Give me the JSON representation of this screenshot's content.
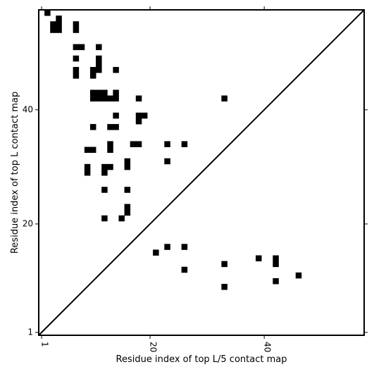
{
  "chart_data": {
    "type": "heatmap",
    "subtype": "contact-map",
    "xlabel": "Residue index of top L/5 contact map",
    "ylabel": "Residue index of top L contact map",
    "xlim": [
      0.5,
      57.5
    ],
    "ylim": [
      0.5,
      57.5
    ],
    "x_ticks": [
      {
        "value": 1,
        "label": "1"
      },
      {
        "value": 20,
        "label": "20"
      },
      {
        "value": 40,
        "label": "40"
      }
    ],
    "y_ticks": [
      {
        "value": 1,
        "label": "1"
      },
      {
        "value": 20,
        "label": "20"
      },
      {
        "value": 40,
        "label": "40"
      }
    ],
    "diagonal": true,
    "upper_left_contacts": [
      [
        2,
        57
      ],
      [
        3,
        54
      ],
      [
        3,
        55
      ],
      [
        4,
        54
      ],
      [
        4,
        55
      ],
      [
        4,
        56
      ],
      [
        7,
        54
      ],
      [
        7,
        55
      ],
      [
        7,
        51
      ],
      [
        8,
        51
      ],
      [
        11,
        51
      ],
      [
        7,
        49
      ],
      [
        11,
        48
      ],
      [
        11,
        49
      ],
      [
        7,
        46
      ],
      [
        7,
        47
      ],
      [
        10,
        46
      ],
      [
        10,
        47
      ],
      [
        11,
        47
      ],
      [
        14,
        47
      ],
      [
        10,
        42
      ],
      [
        10,
        43
      ],
      [
        11,
        42
      ],
      [
        11,
        43
      ],
      [
        12,
        42
      ],
      [
        12,
        43
      ],
      [
        13,
        42
      ],
      [
        14,
        42
      ],
      [
        14,
        43
      ],
      [
        18,
        42
      ],
      [
        33,
        42
      ],
      [
        14,
        39
      ],
      [
        18,
        38
      ],
      [
        18,
        39
      ],
      [
        19,
        39
      ],
      [
        10,
        37
      ],
      [
        13,
        37
      ],
      [
        14,
        37
      ],
      [
        9,
        33
      ],
      [
        10,
        33
      ],
      [
        13,
        33
      ],
      [
        13,
        34
      ],
      [
        17,
        34
      ],
      [
        18,
        34
      ],
      [
        23,
        34
      ],
      [
        26,
        34
      ],
      [
        23,
        31
      ],
      [
        16,
        30
      ],
      [
        16,
        31
      ],
      [
        9,
        29
      ],
      [
        9,
        30
      ],
      [
        12,
        29
      ],
      [
        12,
        30
      ],
      [
        13,
        30
      ],
      [
        12,
        26
      ],
      [
        16,
        26
      ],
      [
        16,
        22
      ],
      [
        16,
        23
      ],
      [
        12,
        21
      ],
      [
        15,
        21
      ]
    ],
    "lower_right_contacts": [
      [
        21,
        15
      ],
      [
        23,
        16
      ],
      [
        26,
        16
      ],
      [
        39,
        14
      ],
      [
        42,
        13
      ],
      [
        42,
        14
      ],
      [
        33,
        13
      ],
      [
        26,
        12
      ],
      [
        46,
        11
      ],
      [
        42,
        10
      ],
      [
        33,
        9
      ]
    ]
  }
}
